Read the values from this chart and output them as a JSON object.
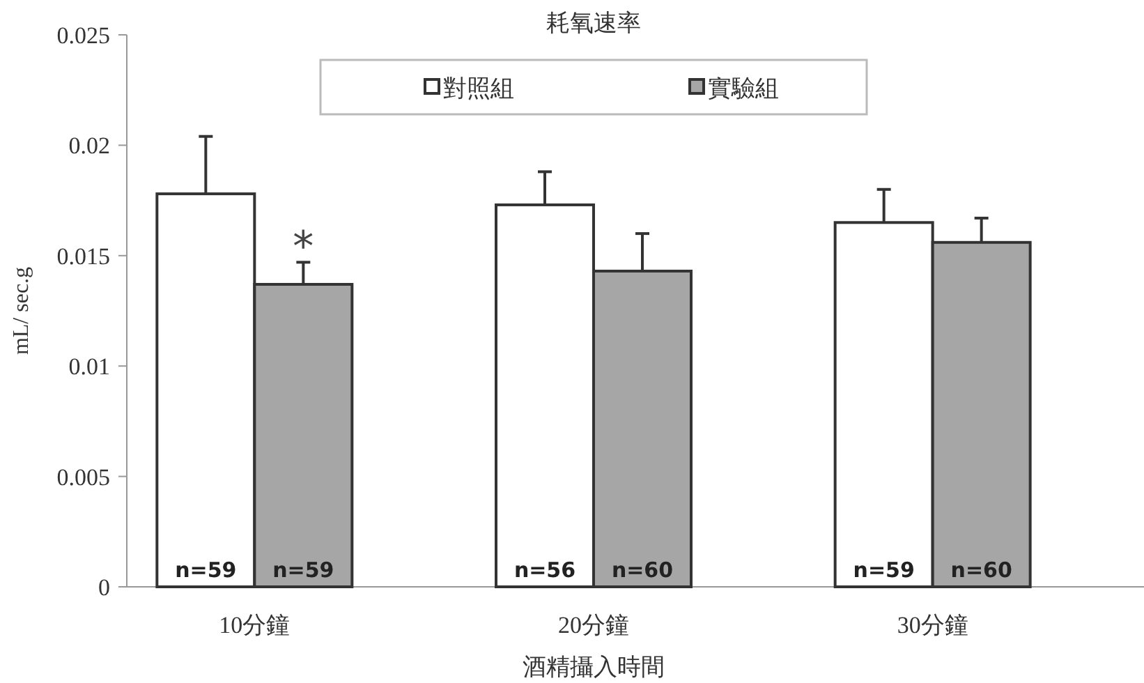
{
  "chart_data": {
    "type": "bar",
    "title": "耗氧速率",
    "xlabel": "酒精攝入時間",
    "ylabel": "mL/ sec.g",
    "categories": [
      "10分鐘",
      "20分鐘",
      "30分鐘"
    ],
    "series": [
      {
        "name": "對照組",
        "color": "#ffffff",
        "values": [
          0.0178,
          0.0173,
          0.0165
        ],
        "errors": [
          [
            0.0178,
            0.0204
          ],
          [
            0.0173,
            0.0188
          ],
          [
            0.0165,
            0.018
          ]
        ]
      },
      {
        "name": "實驗組",
        "color": "#a6a6a6",
        "values": [
          0.0137,
          0.0143,
          0.0156
        ],
        "errors": [
          [
            0.0137,
            0.0147
          ],
          [
            0.0143,
            0.016
          ],
          [
            0.0156,
            0.0167
          ]
        ]
      }
    ],
    "annotations": [
      {
        "text": "*",
        "x": "10分鐘",
        "y": 0.0147
      },
      {
        "text": "n=59",
        "x": "10分鐘",
        "y": 0
      },
      {
        "text": "n=59",
        "x": "10分鐘",
        "y": 0
      },
      {
        "text": "n=56",
        "x": "20分鐘",
        "y": 0
      },
      {
        "text": "n=60",
        "x": "20分鐘",
        "y": 0
      },
      {
        "text": "n=59",
        "x": "30分鐘",
        "y": 0
      },
      {
        "text": "n=60",
        "x": "30分鐘",
        "y": 0
      }
    ],
    "ylim": [
      0,
      0.025
    ],
    "yticks": [
      0,
      0.005,
      0.01,
      0.015,
      0.02,
      0.025
    ],
    "legend": "top",
    "grid": false
  }
}
